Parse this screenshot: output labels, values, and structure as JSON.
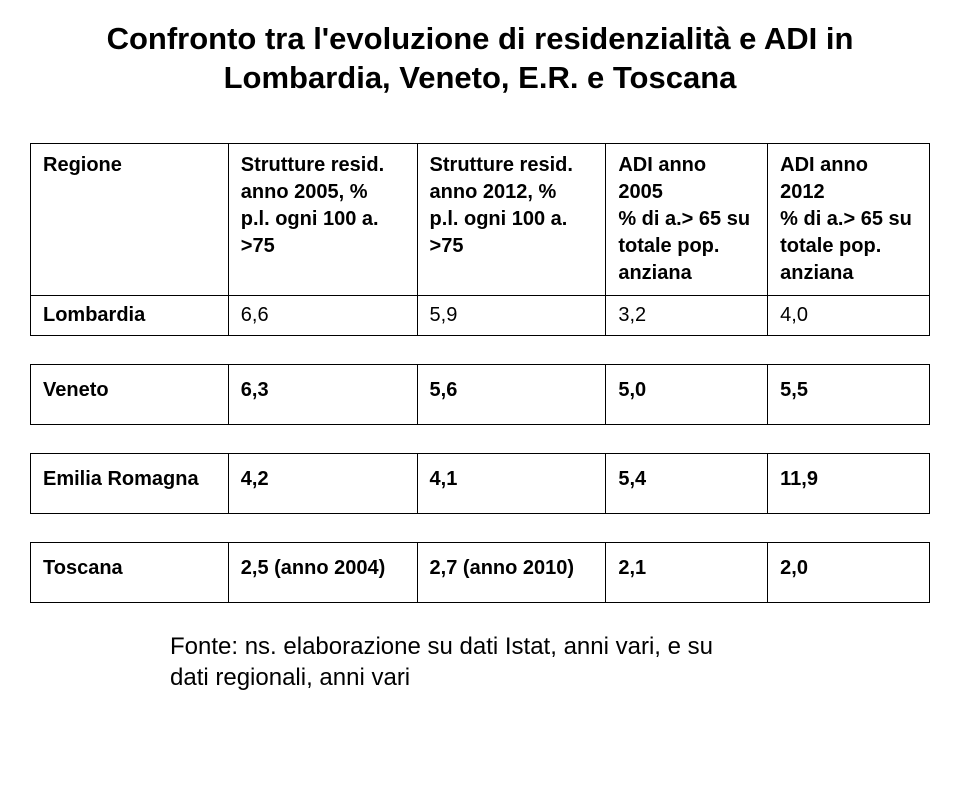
{
  "title_line1": "Confronto tra l'evoluzione di residenzialità e ADI in",
  "title_line2": "Lombardia, Veneto, E.R. e Toscana",
  "headers": {
    "col0": "Regione",
    "col1": {
      "l1": "Strutture resid.",
      "l2": "anno 2005, %",
      "l3": "p.l. ogni 100 a.",
      "l4": ">75"
    },
    "col2": {
      "l1": "Strutture resid.",
      "l2": "anno 2012, %",
      "l3": "p.l. ogni 100 a.",
      "l4": ">75"
    },
    "col3": {
      "l1": "ADI anno 2005",
      "l2": "% di a.> 65 su",
      "l3": "totale pop.",
      "l4": "anziana"
    },
    "col4": {
      "l1": "ADI anno 2012",
      "l2": "% di a.> 65 su",
      "l3": "totale pop.",
      "l4": "anziana"
    }
  },
  "rows": {
    "lombardia": {
      "label": "Lombardia",
      "c1": "6,6",
      "c2": "5,9",
      "c3": "3,2",
      "c4": "4,0"
    },
    "veneto": {
      "label": "Veneto",
      "c1": "6,3",
      "c2": "5,6",
      "c3": "5,0",
      "c4": "5,5"
    },
    "emilia": {
      "label": "Emilia Romagna",
      "c1": "4,2",
      "c2": "4,1",
      "c3": "5,4",
      "c4": "11,9"
    },
    "toscana": {
      "label": "Toscana",
      "c1": "2,5 (anno 2004)",
      "c2": "2,7 (anno 2010)",
      "c3": "2,1",
      "c4": "2,0"
    }
  },
  "footer_line1": "Fonte: ns. elaborazione su dati Istat, anni vari, e su",
  "footer_line2": "dati regionali, anni vari"
}
